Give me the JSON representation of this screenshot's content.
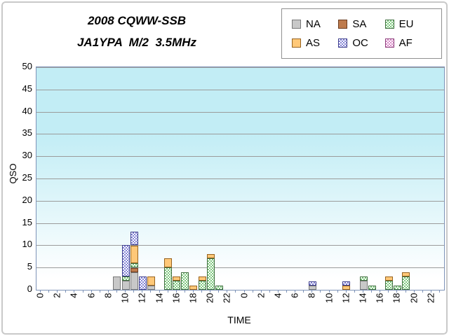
{
  "chart_data": {
    "type": "bar",
    "stacked": true,
    "title_line1": "2008 CQWW-SSB",
    "title_line2": "JA1YPA  M/2  3.5MHz",
    "xlabel": "TIME",
    "ylabel": "QSO",
    "ylim": [
      0,
      50
    ],
    "ytick_step": 5,
    "ytick_labels": [
      "0",
      "5",
      "10",
      "15",
      "20",
      "25",
      "30",
      "35",
      "40",
      "45",
      "50"
    ],
    "x_categories": [
      0,
      1,
      2,
      3,
      4,
      5,
      6,
      7,
      8,
      9,
      10,
      11,
      12,
      13,
      14,
      15,
      16,
      17,
      18,
      19,
      20,
      21,
      22,
      23,
      0,
      1,
      2,
      3,
      4,
      5,
      6,
      7,
      8,
      9,
      10,
      11,
      12,
      13,
      14,
      15,
      16,
      17,
      18,
      19,
      20,
      21,
      22,
      23
    ],
    "xtick_labels": [
      "0",
      "2",
      "4",
      "6",
      "8",
      "10",
      "12",
      "14",
      "16",
      "18",
      "20",
      "22",
      "0",
      "2",
      "4",
      "6",
      "8",
      "10",
      "12",
      "14",
      "16",
      "18",
      "20",
      "22"
    ],
    "grid": true,
    "legend_position": "top-right",
    "series_order": [
      "NA",
      "SA",
      "EU",
      "AS",
      "OC",
      "AF"
    ],
    "series_colors": {
      "NA": {
        "fill": "#C8C8C8",
        "border": "#787878",
        "pattern": "solid"
      },
      "SA": {
        "fill": "#BE7B4D",
        "border": "#6A3B1E",
        "pattern": "solid"
      },
      "EU": {
        "fill": "#7FC87F",
        "border": "#3E6E3E",
        "pattern": "checker"
      },
      "AS": {
        "fill": "#FFC878",
        "border": "#96621E",
        "pattern": "solid"
      },
      "OC": {
        "fill": "#8585D6",
        "border": "#3C3C8C",
        "pattern": "checker"
      },
      "AF": {
        "fill": "#D98BC8",
        "border": "#8C3C7A",
        "pattern": "checker"
      }
    },
    "bars": [
      {
        "day": 1,
        "hour": 9,
        "NA": 3
      },
      {
        "day": 1,
        "hour": 10,
        "NA": 2,
        "EU": 1,
        "OC": 7
      },
      {
        "day": 1,
        "hour": 11,
        "NA": 4,
        "SA": 1,
        "EU": 1,
        "AS": 4,
        "OC": 3
      },
      {
        "day": 1,
        "hour": 12,
        "OC": 3
      },
      {
        "day": 1,
        "hour": 13,
        "NA": 1,
        "AS": 2
      },
      {
        "day": 1,
        "hour": 15,
        "EU": 5,
        "AS": 2
      },
      {
        "day": 1,
        "hour": 16,
        "EU": 2,
        "AS": 1
      },
      {
        "day": 1,
        "hour": 17,
        "EU": 4
      },
      {
        "day": 1,
        "hour": 18,
        "AS": 1
      },
      {
        "day": 1,
        "hour": 19,
        "EU": 2,
        "AS": 1
      },
      {
        "day": 1,
        "hour": 20,
        "EU": 7,
        "AS": 1
      },
      {
        "day": 1,
        "hour": 21,
        "EU": 1
      },
      {
        "day": 2,
        "hour": 8,
        "NA": 1,
        "OC": 1
      },
      {
        "day": 2,
        "hour": 12,
        "AS": 1,
        "OC": 1
      },
      {
        "day": 2,
        "hour": 14,
        "NA": 2,
        "EU": 1
      },
      {
        "day": 2,
        "hour": 15,
        "EU": 1
      },
      {
        "day": 2,
        "hour": 17,
        "EU": 2,
        "AS": 1
      },
      {
        "day": 2,
        "hour": 18,
        "EU": 1
      },
      {
        "day": 2,
        "hour": 19,
        "EU": 3,
        "AS": 1
      }
    ],
    "plot_bg_top_color": "#C2EDF5",
    "plot_bg_bottom_color": "#FFFFFF",
    "gridline_color": "#9B9B9B",
    "axis_color": "#7E93B8"
  },
  "legend": {
    "items": [
      {
        "label": "NA"
      },
      {
        "label": "SA"
      },
      {
        "label": "EU"
      },
      {
        "label": "AS"
      },
      {
        "label": "OC"
      },
      {
        "label": "AF"
      }
    ]
  }
}
